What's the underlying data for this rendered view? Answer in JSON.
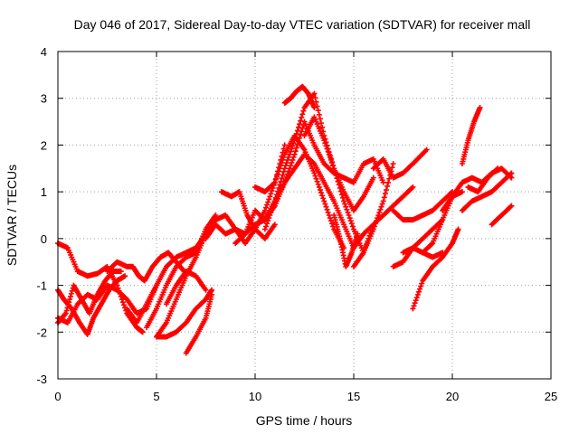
{
  "chart_data": {
    "type": "scatter",
    "title": "Day 046 of 2017, Sidereal Day-to-day VTEC variation (SDTVAR) for receiver mall",
    "xlabel": "GPS time / hours",
    "ylabel": "SDTVAR / TECUs",
    "xlim": [
      0,
      25
    ],
    "ylim": [
      -3,
      4
    ],
    "xticks": [
      "0",
      "5",
      "10",
      "15",
      "20",
      "25"
    ],
    "yticks": [
      "-3",
      "-2",
      "-1",
      "0",
      "1",
      "2",
      "3",
      "4"
    ],
    "grid": true,
    "marker": "plus",
    "color": "#ff0000",
    "series": [
      {
        "x": [
          0.0,
          0.5,
          1.0,
          1.5,
          2.0,
          2.5,
          3.0,
          3.5,
          4.0,
          4.3
        ],
        "y": [
          -0.1,
          -0.2,
          -0.7,
          -0.8,
          -0.75,
          -0.6,
          -1.0,
          -1.6,
          -1.9,
          -2.0
        ]
      },
      {
        "x": [
          0.0,
          0.4,
          0.8,
          1.2,
          1.6,
          2.0,
          2.4,
          2.8,
          3.2
        ],
        "y": [
          -1.8,
          -1.6,
          -1.0,
          -1.3,
          -1.6,
          -1.2,
          -0.9,
          -0.7,
          -0.7
        ]
      },
      {
        "x": [
          0.0,
          0.3,
          0.7,
          1.1,
          1.5,
          1.8,
          2.2,
          2.6,
          3.0,
          3.4
        ],
        "y": [
          -1.1,
          -1.3,
          -1.5,
          -1.8,
          -2.05,
          -1.7,
          -1.4,
          -1.1,
          -0.9,
          -0.8
        ]
      },
      {
        "x": [
          0.0,
          0.5,
          1.0,
          1.5,
          2.0,
          2.5,
          3.0,
          3.5,
          4.0,
          4.5,
          5.0
        ],
        "y": [
          -1.7,
          -1.8,
          -1.4,
          -1.2,
          -1.3,
          -1.0,
          -1.1,
          -1.3,
          -1.6,
          -1.5,
          -1.0
        ]
      },
      {
        "x": [
          2.5,
          3.0,
          3.5,
          3.8,
          4.1,
          4.4,
          4.8,
          5.2,
          5.6,
          6.0,
          6.4
        ],
        "y": [
          -0.7,
          -0.5,
          -0.6,
          -0.6,
          -0.8,
          -0.9,
          -0.6,
          -0.4,
          -0.3,
          -0.5,
          -0.7
        ]
      },
      {
        "x": [
          3.5,
          4.0,
          4.5,
          5.0,
          5.5,
          6.0,
          6.5,
          7.0,
          7.5
        ],
        "y": [
          -1.5,
          -1.8,
          -1.4,
          -1.0,
          -0.6,
          -0.4,
          -0.3,
          -0.2,
          0.1
        ]
      },
      {
        "x": [
          4.5,
          5.0,
          5.5,
          6.0,
          6.5,
          7.0,
          7.5,
          8.0
        ],
        "y": [
          -1.9,
          -1.5,
          -1.0,
          -0.6,
          -0.4,
          -0.3,
          0.2,
          0.5
        ]
      },
      {
        "x": [
          5.0,
          5.5,
          6.0,
          6.5,
          7.0,
          7.5,
          8.0
        ],
        "y": [
          -2.1,
          -1.8,
          -1.3,
          -0.8,
          -0.4,
          0.1,
          0.4
        ]
      },
      {
        "x": [
          5.5,
          6.0,
          6.5,
          7.0,
          7.5
        ],
        "y": [
          -1.4,
          -1.0,
          -0.7,
          -0.8,
          -1.1
        ]
      },
      {
        "x": [
          5.0,
          5.5,
          6.0,
          6.5,
          7.0,
          7.5,
          7.8
        ],
        "y": [
          -2.1,
          -2.1,
          -2.0,
          -1.8,
          -1.5,
          -1.3,
          -1.1
        ]
      },
      {
        "x": [
          6.5,
          7.0,
          7.5,
          7.8
        ],
        "y": [
          -2.45,
          -2.1,
          -1.7,
          -1.2
        ]
      },
      {
        "x": [
          7.5,
          8.0,
          8.5,
          9.0,
          9.5,
          10.0,
          10.5,
          11.0,
          11.5
        ],
        "y": [
          0.0,
          0.3,
          0.1,
          0.2,
          -0.1,
          0.2,
          0.6,
          1.2,
          2.0
        ]
      },
      {
        "x": [
          8.0,
          8.5,
          9.0,
          9.5,
          10.0,
          10.5,
          11.0
        ],
        "y": [
          0.4,
          0.5,
          0.2,
          0.1,
          0.6,
          0.4,
          0.7
        ]
      },
      {
        "x": [
          8.3,
          8.8,
          9.2,
          9.6,
          10.0,
          10.5,
          11.0
        ],
        "y": [
          1.0,
          0.9,
          1.0,
          0.5,
          0.2,
          0.0,
          0.3
        ]
      },
      {
        "x": [
          9.0,
          9.5,
          10.0,
          10.5,
          11.0,
          11.5,
          12.0,
          12.5,
          13.0,
          13.5,
          14.0,
          14.5,
          15.0,
          15.5,
          16.0,
          16.5,
          17.0,
          17.5,
          18.0
        ],
        "y": [
          -0.1,
          0.1,
          0.3,
          0.4,
          0.8,
          1.2,
          1.5,
          1.8,
          1.6,
          1.2,
          0.8,
          0.3,
          -0.2,
          0.1,
          0.3,
          0.5,
          0.7,
          0.9,
          1.1
        ]
      },
      {
        "x": [
          10.0,
          10.5,
          11.0,
          11.5,
          12.0,
          12.5,
          13.0,
          13.5,
          14.0,
          14.5
        ],
        "y": [
          1.1,
          1.0,
          1.2,
          1.8,
          2.2,
          1.9,
          1.4,
          0.8,
          0.2,
          -0.2
        ]
      },
      {
        "x": [
          10.5,
          11.0,
          11.5,
          12.0,
          12.5,
          13.0,
          13.5,
          14.0,
          14.5,
          15.0,
          15.5,
          16.0
        ],
        "y": [
          0.2,
          0.8,
          1.5,
          2.1,
          2.8,
          3.1,
          2.2,
          1.5,
          1.0,
          0.6,
          0.9,
          1.3
        ]
      },
      {
        "x": [
          11.0,
          11.5,
          12.0,
          12.5,
          13.0,
          13.5,
          14.0,
          14.5,
          15.0,
          15.5,
          16.0,
          16.5
        ],
        "y": [
          0.7,
          1.2,
          1.8,
          2.5,
          2.0,
          1.6,
          1.4,
          1.3,
          1.2,
          1.6,
          1.7,
          1.2
        ]
      },
      {
        "x": [
          11.5,
          11.8,
          12.1,
          12.4,
          12.7,
          13.0
        ],
        "y": [
          2.9,
          3.0,
          3.15,
          3.25,
          3.1,
          2.8
        ]
      },
      {
        "x": [
          12.5,
          13.0,
          13.5,
          14.0,
          14.5,
          15.0,
          15.5,
          16.0
        ],
        "y": [
          2.2,
          2.6,
          2.1,
          1.5,
          0.8,
          0.2,
          -0.3,
          0.3
        ]
      },
      {
        "x": [
          14.0,
          14.3,
          14.6,
          14.9,
          15.2
        ],
        "y": [
          0.5,
          0.0,
          -0.6,
          -0.3,
          0.1
        ]
      },
      {
        "x": [
          15.0,
          15.5,
          16.0,
          16.5,
          17.0
        ],
        "y": [
          -0.6,
          -0.3,
          0.2,
          0.8,
          1.6
        ]
      },
      {
        "x": [
          16.0,
          16.5,
          17.0,
          17.5,
          18.0,
          18.7
        ],
        "y": [
          1.5,
          1.7,
          1.3,
          1.4,
          1.6,
          1.9
        ]
      },
      {
        "x": [
          17.0,
          17.5,
          18.0,
          18.5,
          19.0,
          19.5,
          20.0
        ],
        "y": [
          0.6,
          0.4,
          0.4,
          0.5,
          0.6,
          0.8,
          1.0
        ]
      },
      {
        "x": [
          17.0,
          17.5,
          18.0,
          18.5,
          19.0,
          19.5
        ],
        "y": [
          -0.6,
          -0.5,
          -0.2,
          0.0,
          0.2,
          0.4
        ]
      },
      {
        "x": [
          17.5,
          18.0,
          18.5,
          19.0,
          19.5
        ],
        "y": [
          -0.3,
          -0.2,
          -0.3,
          -0.4,
          -0.3
        ]
      },
      {
        "x": [
          18.0,
          18.5,
          19.0,
          19.5,
          20.0,
          20.3
        ],
        "y": [
          -1.5,
          -0.9,
          -0.6,
          -0.4,
          -0.1,
          0.2
        ]
      },
      {
        "x": [
          18.5,
          19.0,
          19.5,
          20.0,
          20.5
        ],
        "y": [
          -0.3,
          -0.1,
          0.4,
          0.9,
          1.0
        ]
      },
      {
        "x": [
          19.5,
          20.0,
          20.5,
          21.0,
          21.5,
          22.0,
          22.5,
          23.0
        ],
        "y": [
          0.6,
          0.9,
          1.2,
          1.3,
          1.2,
          1.4,
          1.5,
          1.3
        ]
      },
      {
        "x": [
          20.5,
          20.8,
          21.1,
          21.4
        ],
        "y": [
          1.6,
          2.1,
          2.5,
          2.8
        ]
      },
      {
        "x": [
          20.5,
          21.0,
          21.5,
          22.0,
          22.5,
          23.0
        ],
        "y": [
          0.6,
          0.8,
          0.9,
          1.0,
          1.2,
          1.4
        ]
      },
      {
        "x": [
          20.8,
          21.3,
          21.8,
          22.3
        ],
        "y": [
          1.1,
          1.0,
          1.3,
          1.5
        ]
      },
      {
        "x": [
          22.0,
          22.5,
          23.0
        ],
        "y": [
          0.3,
          0.5,
          0.7
        ]
      }
    ]
  }
}
